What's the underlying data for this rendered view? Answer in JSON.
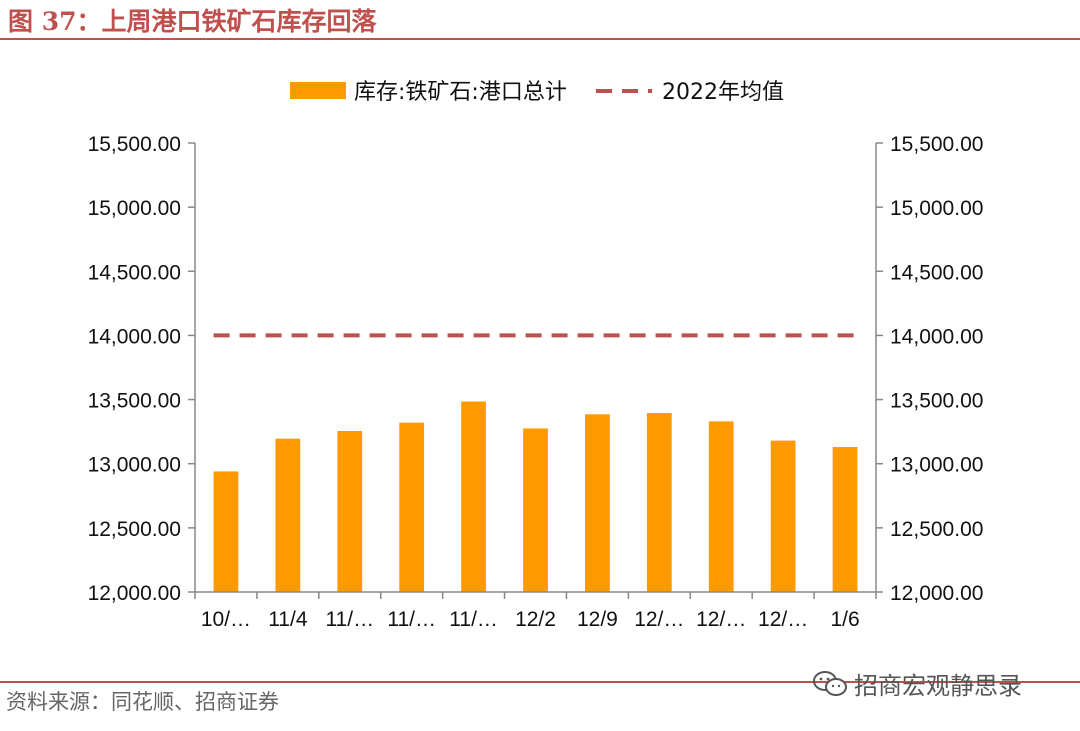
{
  "figure": {
    "title": "图 37：上周港口铁矿石库存回落",
    "source": "资料来源：同花顺、招商证券",
    "watermark": "招商宏观静思录",
    "watermark_icon": "wechat-icon",
    "accent_color": "#c0504d"
  },
  "chart_data": {
    "type": "bar",
    "categories": [
      "10/…",
      "11/4",
      "11/…",
      "11/…",
      "11/…",
      "12/2",
      "12/9",
      "12/…",
      "12/…",
      "12/…",
      "1/6"
    ],
    "series": [
      {
        "name": "库存:铁矿石:港口总计",
        "type": "bar",
        "color": "#ff9900",
        "values": [
          12940,
          13195,
          13255,
          13320,
          13485,
          13275,
          13385,
          13395,
          13330,
          13180,
          13130
        ]
      },
      {
        "name": "2022年均值",
        "type": "line",
        "style": "dashed",
        "color": "#c0504d",
        "values": [
          14000,
          14000,
          14000,
          14000,
          14000,
          14000,
          14000,
          14000,
          14000,
          14000,
          14000
        ]
      }
    ],
    "ylim": [
      12000,
      15500
    ],
    "y_ticks": [
      "12,000.00",
      "12,500.00",
      "13,000.00",
      "13,500.00",
      "14,000.00",
      "14,500.00",
      "15,000.00",
      "15,500.00"
    ],
    "y_tick_values": [
      12000,
      12500,
      13000,
      13500,
      14000,
      14500,
      15000,
      15500
    ],
    "secondary_y_axis": true,
    "grid": false,
    "legend_position": "top-center"
  }
}
